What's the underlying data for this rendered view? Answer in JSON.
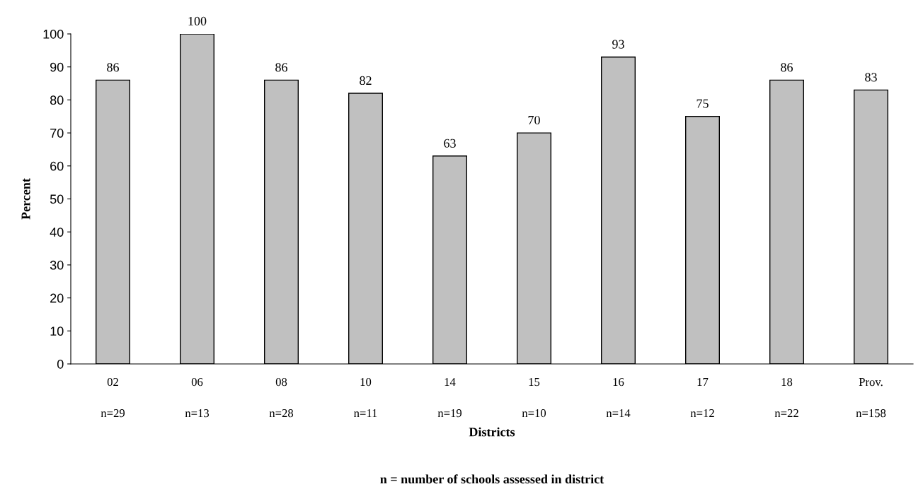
{
  "chart_data": {
    "type": "bar",
    "categories": [
      "02\n\nn=29",
      "06\n\nn=13",
      "08\n\nn=28",
      "10\n\nn=11",
      "14\n\nn=19",
      "15\n\nn=10",
      "16\n\nn=14",
      "17\n\nn=12",
      "18\n\nn=22",
      "Prov.\n\nn=158"
    ],
    "values": [
      86,
      100,
      86,
      82,
      63,
      70,
      93,
      75,
      86,
      83
    ],
    "color": "#c0c0c0",
    "xlabel": "Districts",
    "ylabel": "Percent",
    "annotations": [
      "n = number of schools assessed in district"
    ],
    "ylim": [
      0,
      100
    ],
    "yticks": [
      0,
      10,
      20,
      30,
      40,
      50,
      60,
      70,
      80,
      90,
      100
    ],
    "data_labels": true,
    "grid": false,
    "legend": false
  }
}
